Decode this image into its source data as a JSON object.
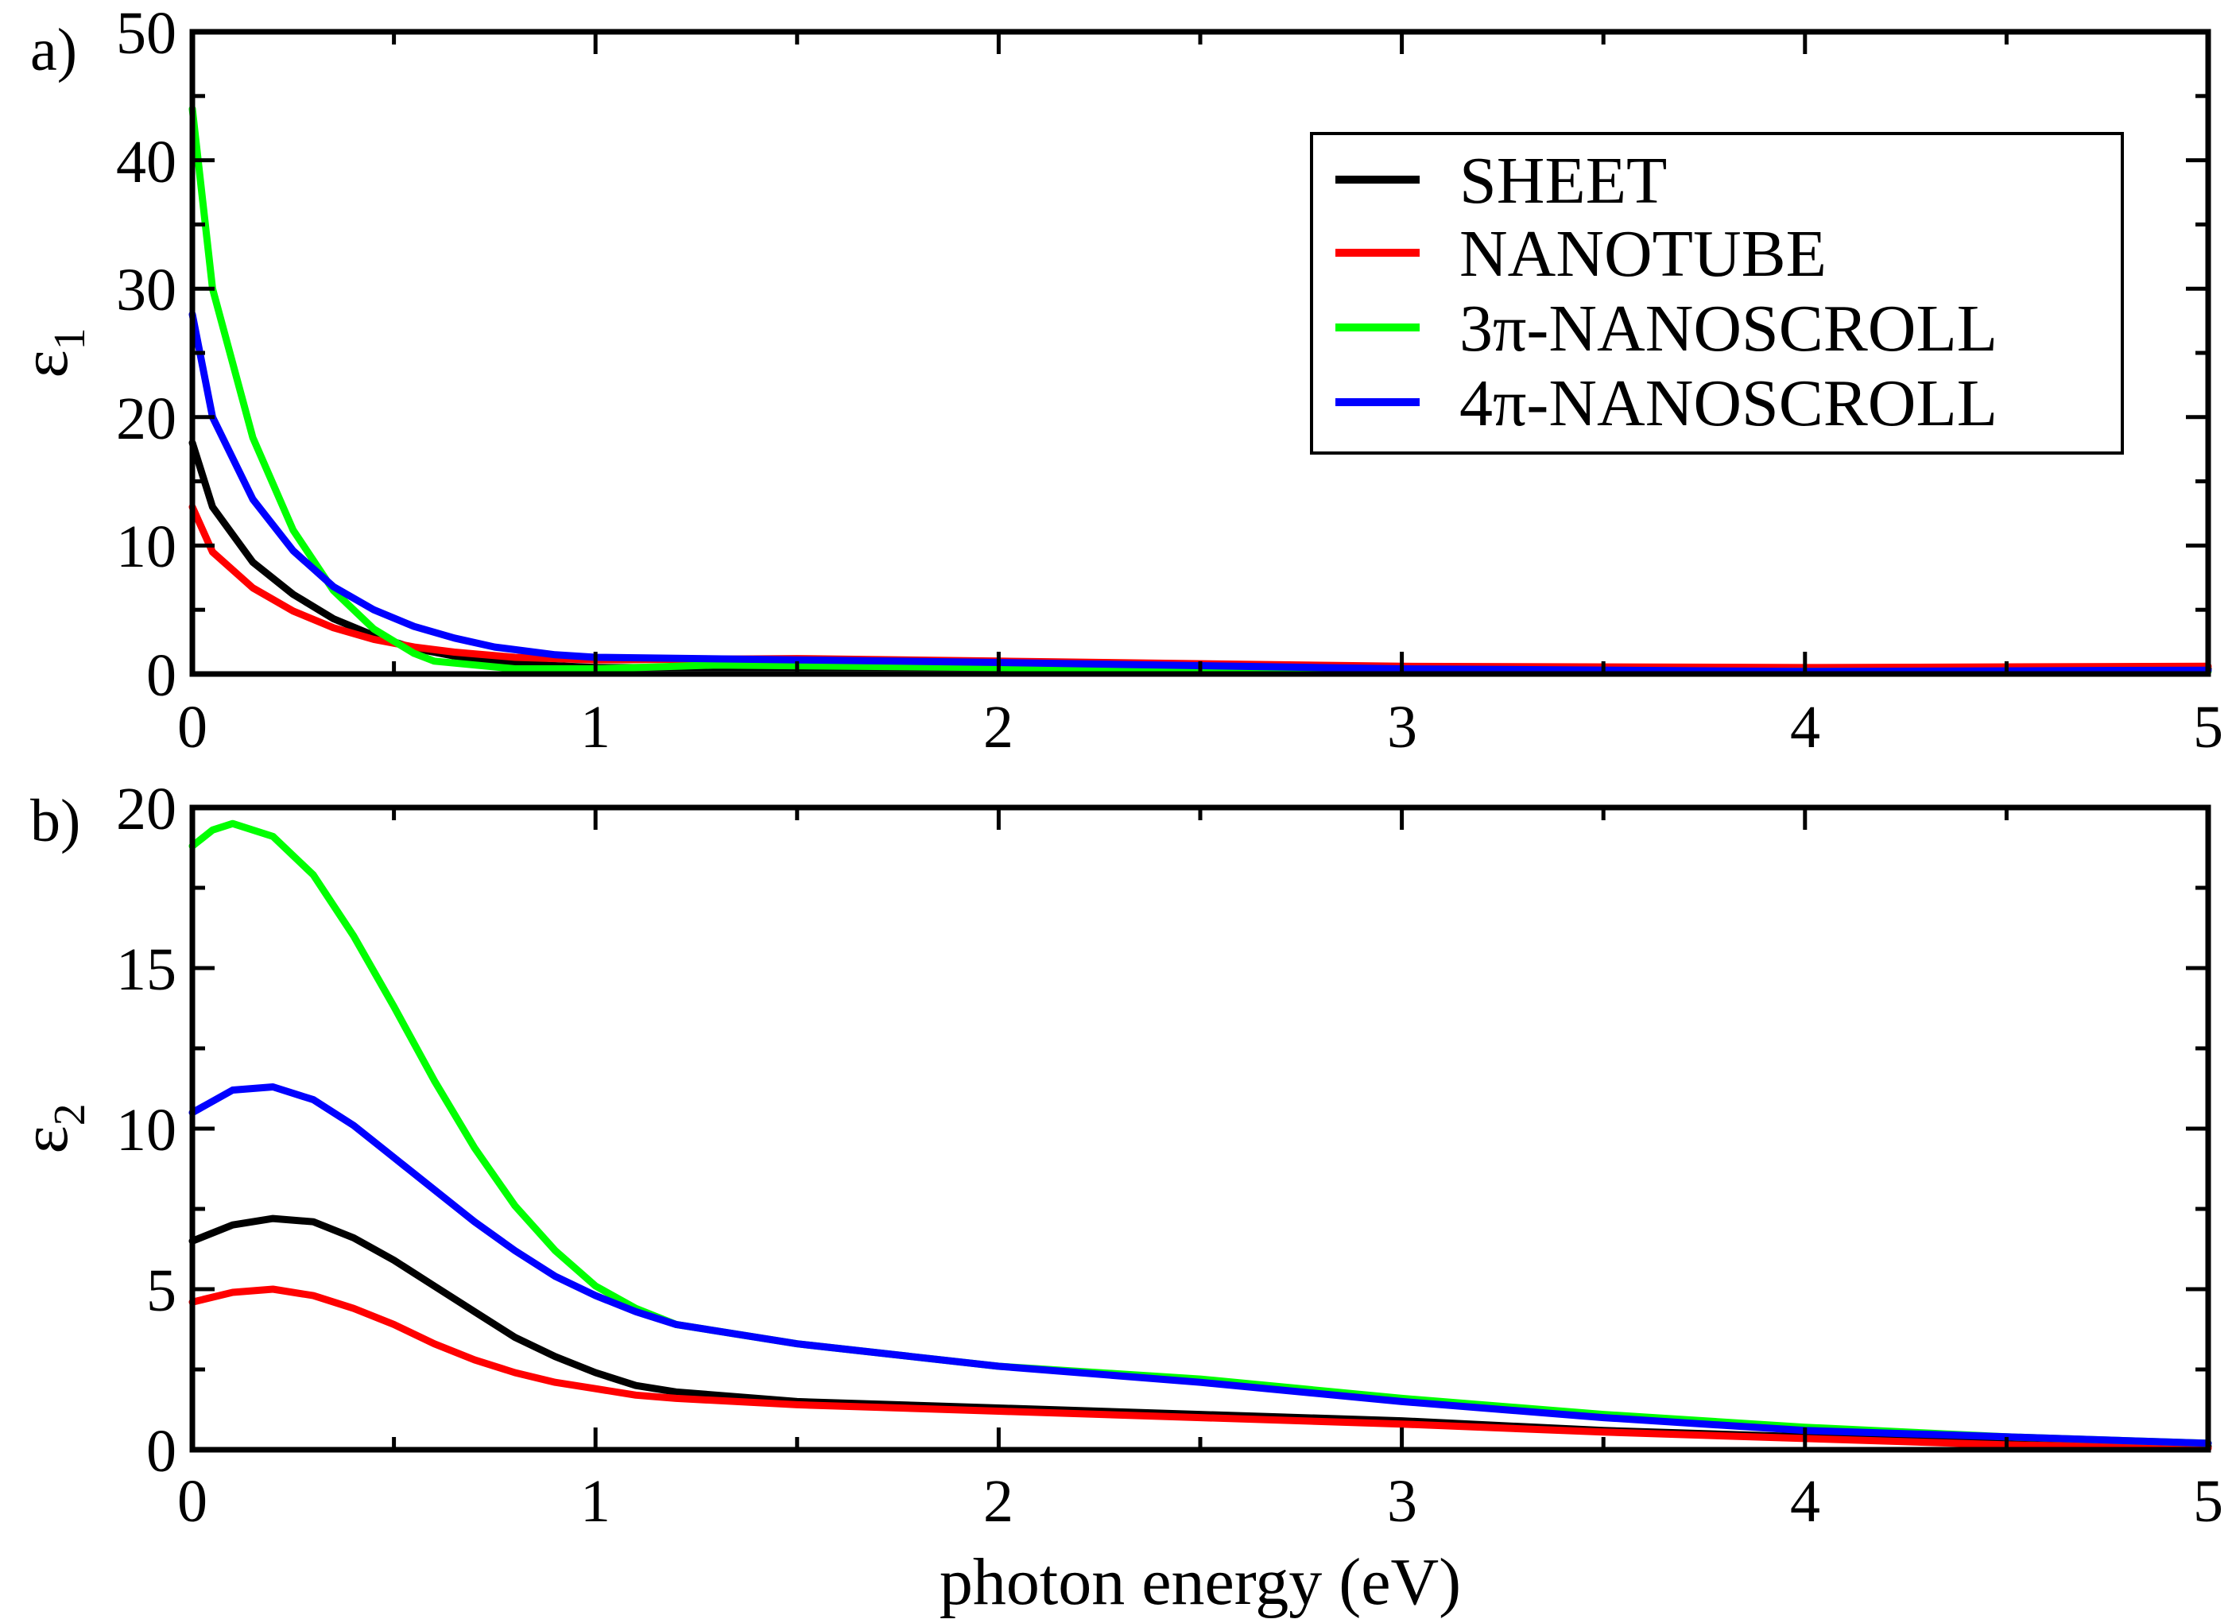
{
  "chart_data": [
    {
      "panel": "a)",
      "type": "line",
      "xlabel": "",
      "ylabel": "ε",
      "ylabel_sub": "1",
      "xlim": [
        0,
        5
      ],
      "ylim": [
        0,
        50
      ],
      "xticks": [
        "0",
        "1",
        "2",
        "3",
        "4",
        "5"
      ],
      "yticks": [
        "0",
        "10",
        "20",
        "30",
        "40",
        "50"
      ],
      "legend_position": "top-right",
      "series": [
        {
          "name": "SHEET",
          "color": "#000000",
          "x": [
            0,
            0.05,
            0.15,
            0.25,
            0.35,
            0.45,
            0.55,
            0.65,
            0.8,
            1.0,
            1.3,
            2.0,
            3.0,
            4.0,
            5.0
          ],
          "y": [
            18,
            13,
            8.7,
            6.2,
            4.3,
            3.0,
            2.0,
            1.4,
            0.8,
            0.5,
            0.5,
            0.5,
            0.4,
            0.4,
            0.4
          ]
        },
        {
          "name": "NANOTUBE",
          "color": "#ff0000",
          "x": [
            0,
            0.05,
            0.15,
            0.25,
            0.35,
            0.45,
            0.55,
            0.65,
            0.8,
            1.0,
            1.5,
            2.0,
            3.0,
            4.0,
            5.0
          ],
          "y": [
            13,
            9.5,
            6.7,
            4.9,
            3.6,
            2.7,
            2.1,
            1.7,
            1.3,
            1.1,
            1.2,
            1.0,
            0.6,
            0.5,
            0.6
          ]
        },
        {
          "name": "3π-NANOSCROLL",
          "color": "#00ff00",
          "x": [
            0,
            0.05,
            0.15,
            0.25,
            0.35,
            0.45,
            0.55,
            0.6,
            0.8,
            1.0,
            1.3,
            2.0,
            3.0,
            4.0,
            5.0
          ],
          "y": [
            44,
            30,
            18.4,
            11.2,
            6.5,
            3.5,
            1.6,
            1.0,
            0.4,
            0.4,
            0.7,
            0.5,
            0.3,
            0.2,
            0.2
          ]
        },
        {
          "name": "4π-NANOSCROLL",
          "color": "#0000ff",
          "x": [
            0,
            0.05,
            0.15,
            0.25,
            0.35,
            0.45,
            0.55,
            0.65,
            0.75,
            0.9,
            1.0,
            1.5,
            2.0,
            3.0,
            4.0,
            5.0
          ],
          "y": [
            28,
            20,
            13.6,
            9.6,
            6.8,
            5.0,
            3.7,
            2.8,
            2.1,
            1.5,
            1.3,
            1.1,
            0.9,
            0.4,
            0.2,
            0.3
          ]
        }
      ]
    },
    {
      "panel": "b)",
      "type": "line",
      "xlabel": "photon energy (eV)",
      "ylabel": "ε",
      "ylabel_sub": "2",
      "xlim": [
        0,
        5
      ],
      "ylim": [
        0,
        20
      ],
      "xticks": [
        "0",
        "1",
        "2",
        "3",
        "4",
        "5"
      ],
      "yticks": [
        "0",
        "5",
        "10",
        "15",
        "20"
      ],
      "series": [
        {
          "name": "SHEET",
          "color": "#000000",
          "x": [
            0,
            0.1,
            0.2,
            0.3,
            0.4,
            0.5,
            0.6,
            0.7,
            0.8,
            0.9,
            1.0,
            1.1,
            1.2,
            1.5,
            2.0,
            2.5,
            3.0,
            3.5,
            4.0,
            4.5,
            5.0
          ],
          "y": [
            6.5,
            7.0,
            7.2,
            7.1,
            6.6,
            5.9,
            5.1,
            4.3,
            3.5,
            2.9,
            2.4,
            2.0,
            1.8,
            1.5,
            1.3,
            1.1,
            0.9,
            0.6,
            0.4,
            0.2,
            0.1
          ]
        },
        {
          "name": "NANOTUBE",
          "color": "#ff0000",
          "x": [
            0,
            0.1,
            0.2,
            0.3,
            0.4,
            0.5,
            0.6,
            0.7,
            0.8,
            0.9,
            1.0,
            1.1,
            1.2,
            1.5,
            2.0,
            2.5,
            3.0,
            3.5,
            4.0,
            4.5,
            5.0
          ],
          "y": [
            4.6,
            4.9,
            5.0,
            4.8,
            4.4,
            3.9,
            3.3,
            2.8,
            2.4,
            2.1,
            1.9,
            1.7,
            1.6,
            1.4,
            1.2,
            1.0,
            0.8,
            0.55,
            0.35,
            0.15,
            0.05
          ]
        },
        {
          "name": "3π-NANOSCROLL",
          "color": "#00ff00",
          "x": [
            0,
            0.05,
            0.1,
            0.2,
            0.3,
            0.4,
            0.5,
            0.6,
            0.7,
            0.8,
            0.9,
            1.0,
            1.1,
            1.2,
            1.5,
            2.0,
            2.5,
            3.0,
            3.5,
            4.0,
            4.5,
            5.0
          ],
          "y": [
            18.8,
            19.3,
            19.5,
            19.1,
            17.9,
            16.0,
            13.8,
            11.5,
            9.4,
            7.6,
            6.2,
            5.1,
            4.4,
            3.9,
            3.3,
            2.6,
            2.2,
            1.6,
            1.1,
            0.7,
            0.4,
            0.2
          ]
        },
        {
          "name": "4π-NANOSCROLL",
          "color": "#0000ff",
          "x": [
            0,
            0.1,
            0.2,
            0.3,
            0.4,
            0.5,
            0.6,
            0.7,
            0.8,
            0.9,
            1.0,
            1.1,
            1.2,
            1.5,
            2.0,
            2.5,
            3.0,
            3.5,
            4.0,
            4.5,
            5.0
          ],
          "y": [
            10.5,
            11.2,
            11.3,
            10.9,
            10.1,
            9.1,
            8.1,
            7.1,
            6.2,
            5.4,
            4.8,
            4.3,
            3.9,
            3.3,
            2.6,
            2.1,
            1.5,
            1.0,
            0.6,
            0.4,
            0.2
          ]
        }
      ]
    }
  ]
}
